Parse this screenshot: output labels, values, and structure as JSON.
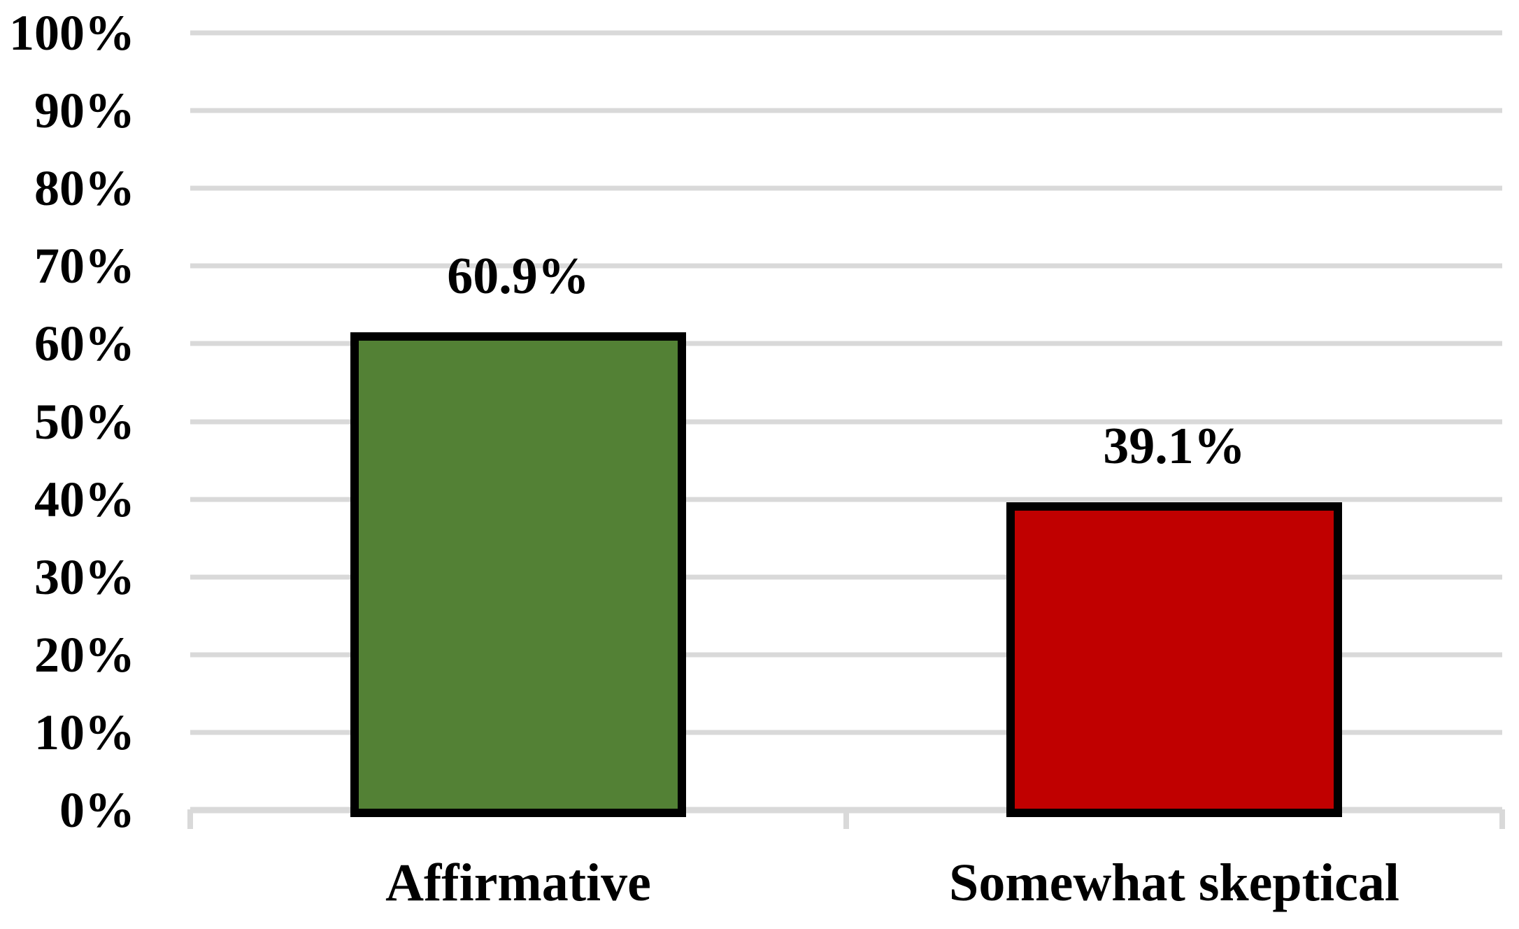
{
  "chart_data": {
    "type": "bar",
    "title": "",
    "xlabel": "",
    "ylabel": "",
    "categories": [
      "Affirmative",
      "Somewhat skeptical"
    ],
    "values": [
      60.9,
      39.1
    ],
    "value_labels": [
      "60.9%",
      "39.1%"
    ],
    "bar_colors": [
      "#538135",
      "#C00000"
    ],
    "bar_border_color": "#000000",
    "ylim": [
      0,
      100
    ],
    "y_tick_step": 10,
    "y_tick_labels": [
      "0%",
      "10%",
      "20%",
      "30%",
      "40%",
      "50%",
      "60%",
      "70%",
      "80%",
      "90%",
      "100%"
    ],
    "grid": true,
    "gridline_color": "#D9D9D9",
    "axis_line_color": "#D9D9D9",
    "legend": "none",
    "text_color": "#000000"
  }
}
